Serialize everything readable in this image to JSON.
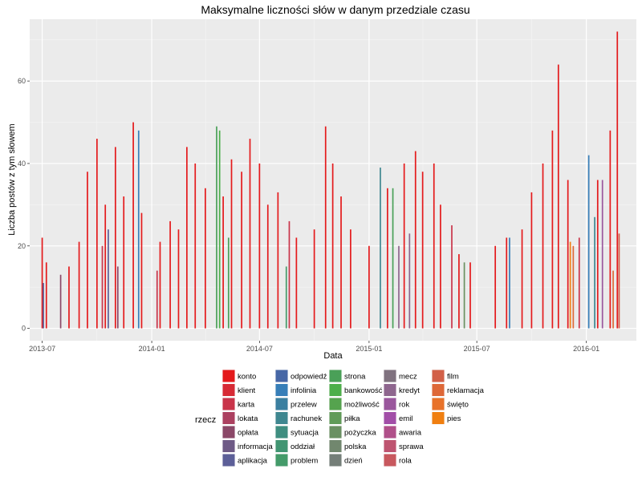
{
  "chart_data": {
    "type": "bar",
    "title": "Maksymalne liczności słów w danym przedziale czasu",
    "xlabel": "Data",
    "ylabel": "Liczba postów z tym słowem",
    "x_ticks": [
      {
        "date": "2013-07-01",
        "label": "2013-07"
      },
      {
        "date": "2014-01-01",
        "label": "2014-01"
      },
      {
        "date": "2014-07-01",
        "label": "2014-07"
      },
      {
        "date": "2015-01-01",
        "label": "2015-01"
      },
      {
        "date": "2015-07-01",
        "label": "2015-07"
      },
      {
        "date": "2016-01-01",
        "label": "2016-01"
      }
    ],
    "xlim": [
      "2013-06-10",
      "2016-03-25"
    ],
    "ylim": [
      -3,
      75
    ],
    "y_ticks": [
      0,
      20,
      40,
      60
    ],
    "grid": true,
    "legend_title": "rzecz",
    "legend_position": "bottom",
    "legend_items": [
      {
        "label": "konto",
        "color": "#E41A1C"
      },
      {
        "label": "klient",
        "color": "#D72A35"
      },
      {
        "label": "karta",
        "color": "#C9344A"
      },
      {
        "label": "lokata",
        "color": "#AC4060"
      },
      {
        "label": "opłata",
        "color": "#8B4868"
      },
      {
        "label": "informacja",
        "color": "#6E5A86"
      },
      {
        "label": "aplikacja",
        "color": "#5C5F98"
      },
      {
        "label": "odpowiedź",
        "color": "#4767A6"
      },
      {
        "label": "infolinia",
        "color": "#377EB8"
      },
      {
        "label": "przelew",
        "color": "#3B7FA0"
      },
      {
        "label": "rachunek",
        "color": "#3F8790"
      },
      {
        "label": "sytuacja",
        "color": "#3F8E80"
      },
      {
        "label": "oddział",
        "color": "#419572"
      },
      {
        "label": "problem",
        "color": "#449B6A"
      },
      {
        "label": "strona",
        "color": "#4AA058"
      },
      {
        "label": "bankowość",
        "color": "#4DAF4A"
      },
      {
        "label": "możliwość",
        "color": "#55A34E"
      },
      {
        "label": "piłka",
        "color": "#609B58"
      },
      {
        "label": "pożyczka",
        "color": "#6A9062"
      },
      {
        "label": "polska",
        "color": "#71876E"
      },
      {
        "label": "dzień",
        "color": "#747E78"
      },
      {
        "label": "mecz",
        "color": "#80727F"
      },
      {
        "label": "kredyt",
        "color": "#8E668E"
      },
      {
        "label": "rok",
        "color": "#9A579D"
      },
      {
        "label": "emil",
        "color": "#A24EA8"
      },
      {
        "label": "awaria",
        "color": "#B0508A"
      },
      {
        "label": "sprawa",
        "color": "#BE5470"
      },
      {
        "label": "rola",
        "color": "#C8585E"
      },
      {
        "label": "film",
        "color": "#D26048"
      },
      {
        "label": "reklamacja",
        "color": "#DE6838"
      },
      {
        "label": "święto",
        "color": "#E8722A"
      },
      {
        "label": "pies",
        "color": "#F07F10"
      }
    ],
    "series": [
      {
        "name": "konto",
        "values": [
          {
            "x": "2013-07-01",
            "y": 22
          },
          {
            "x": "2013-07-08",
            "y": 16
          },
          {
            "x": "2013-08-15",
            "y": 15
          },
          {
            "x": "2013-09-01",
            "y": 21
          },
          {
            "x": "2013-09-15",
            "y": 38
          },
          {
            "x": "2013-10-01",
            "y": 46
          },
          {
            "x": "2013-10-15",
            "y": 30
          },
          {
            "x": "2013-11-01",
            "y": 44
          },
          {
            "x": "2013-11-15",
            "y": 32
          },
          {
            "x": "2013-12-01",
            "y": 50
          },
          {
            "x": "2013-12-15",
            "y": 28
          },
          {
            "x": "2014-01-15",
            "y": 21
          },
          {
            "x": "2014-02-01",
            "y": 26
          },
          {
            "x": "2014-02-15",
            "y": 24
          },
          {
            "x": "2014-03-01",
            "y": 44
          },
          {
            "x": "2014-03-15",
            "y": 40
          },
          {
            "x": "2014-04-01",
            "y": 34
          },
          {
            "x": "2014-05-01",
            "y": 32
          },
          {
            "x": "2014-05-15",
            "y": 41
          },
          {
            "x": "2014-06-01",
            "y": 38
          },
          {
            "x": "2014-06-15",
            "y": 46
          },
          {
            "x": "2014-07-01",
            "y": 40
          },
          {
            "x": "2014-07-15",
            "y": 30
          },
          {
            "x": "2014-08-01",
            "y": 33
          },
          {
            "x": "2014-09-01",
            "y": 22
          },
          {
            "x": "2014-10-01",
            "y": 24
          },
          {
            "x": "2014-10-20",
            "y": 49
          },
          {
            "x": "2014-11-01",
            "y": 40
          },
          {
            "x": "2014-11-15",
            "y": 32
          },
          {
            "x": "2014-12-01",
            "y": 24
          },
          {
            "x": "2015-01-01",
            "y": 20
          },
          {
            "x": "2015-02-01",
            "y": 34
          },
          {
            "x": "2015-03-01",
            "y": 40
          },
          {
            "x": "2015-03-20",
            "y": 43
          },
          {
            "x": "2015-04-01",
            "y": 38
          },
          {
            "x": "2015-04-20",
            "y": 40
          },
          {
            "x": "2015-05-01",
            "y": 30
          },
          {
            "x": "2015-06-01",
            "y": 18
          },
          {
            "x": "2015-06-20",
            "y": 16
          },
          {
            "x": "2015-08-01",
            "y": 20
          },
          {
            "x": "2015-08-20",
            "y": 22
          },
          {
            "x": "2015-09-15",
            "y": 24
          },
          {
            "x": "2015-10-01",
            "y": 33
          },
          {
            "x": "2015-10-20",
            "y": 40
          },
          {
            "x": "2015-11-05",
            "y": 48
          },
          {
            "x": "2015-11-15",
            "y": 64
          },
          {
            "x": "2015-12-01",
            "y": 36
          },
          {
            "x": "2016-01-20",
            "y": 36
          },
          {
            "x": "2016-02-10",
            "y": 48
          },
          {
            "x": "2016-02-22",
            "y": 72
          }
        ]
      },
      {
        "name": "karta",
        "values": [
          {
            "x": "2013-10-10",
            "y": 20
          },
          {
            "x": "2014-01-10",
            "y": 14
          },
          {
            "x": "2014-08-20",
            "y": 26
          },
          {
            "x": "2015-05-20",
            "y": 25
          },
          {
            "x": "2015-12-20",
            "y": 22
          }
        ]
      },
      {
        "name": "opłata",
        "values": [
          {
            "x": "2013-08-01",
            "y": 13
          },
          {
            "x": "2013-11-05",
            "y": 15
          }
        ]
      },
      {
        "name": "aplikacja",
        "values": [
          {
            "x": "2013-07-03",
            "y": 11
          },
          {
            "x": "2013-10-20",
            "y": 24
          }
        ]
      },
      {
        "name": "infolinia",
        "values": [
          {
            "x": "2013-12-10",
            "y": 48
          },
          {
            "x": "2015-08-25",
            "y": 22
          },
          {
            "x": "2016-01-05",
            "y": 42
          }
        ]
      },
      {
        "name": "rachunek",
        "values": [
          {
            "x": "2015-01-20",
            "y": 39
          },
          {
            "x": "2016-01-15",
            "y": 27
          }
        ]
      },
      {
        "name": "problem",
        "values": [
          {
            "x": "2014-08-15",
            "y": 15
          }
        ]
      },
      {
        "name": "strona",
        "values": [
          {
            "x": "2014-04-20",
            "y": 49
          },
          {
            "x": "2014-05-10",
            "y": 22
          },
          {
            "x": "2015-02-10",
            "y": 34
          }
        ]
      },
      {
        "name": "bankowość",
        "values": [
          {
            "x": "2014-04-25",
            "y": 48
          }
        ]
      },
      {
        "name": "pożyczka",
        "values": [
          {
            "x": "2015-06-10",
            "y": 16
          }
        ]
      },
      {
        "name": "kredyt",
        "values": [
          {
            "x": "2015-02-20",
            "y": 20
          },
          {
            "x": "2015-03-10",
            "y": 23
          }
        ]
      },
      {
        "name": "rok",
        "values": [
          {
            "x": "2016-01-28",
            "y": 36
          }
        ]
      },
      {
        "name": "film",
        "values": [
          {
            "x": "2016-02-25",
            "y": 23
          }
        ]
      },
      {
        "name": "reklamacja",
        "values": [
          {
            "x": "2015-12-10",
            "y": 20
          },
          {
            "x": "2016-02-15",
            "y": 14
          }
        ]
      },
      {
        "name": "pies",
        "values": [
          {
            "x": "2015-12-05",
            "y": 21
          }
        ]
      }
    ]
  }
}
